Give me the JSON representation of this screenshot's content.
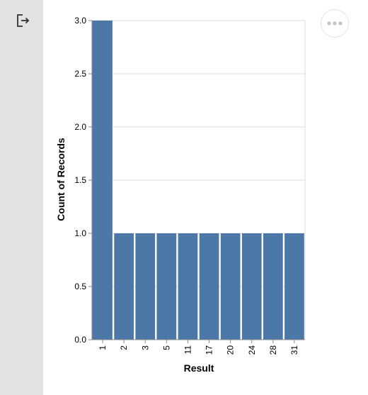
{
  "toolbar": {
    "exit_icon": "exit-icon",
    "more_icon": "ellipsis-icon"
  },
  "colors": {
    "bar": "#4c78a8",
    "grid": "#dddddd",
    "axis": "#888888",
    "sidebar": "#e3e3e3"
  },
  "chart_data": {
    "type": "bar",
    "title": "",
    "xlabel": "Result",
    "ylabel": "Count of Records",
    "categories": [
      "1",
      "2",
      "3",
      "5",
      "11",
      "17",
      "20",
      "24",
      "28",
      "31"
    ],
    "values": [
      3,
      1,
      1,
      1,
      1,
      1,
      1,
      1,
      1,
      1
    ],
    "ylim": [
      0,
      3
    ],
    "yticks": [
      "0.0",
      "0.5",
      "1.0",
      "1.5",
      "2.0",
      "2.5",
      "3.0"
    ],
    "grid": true,
    "legend": "none"
  }
}
